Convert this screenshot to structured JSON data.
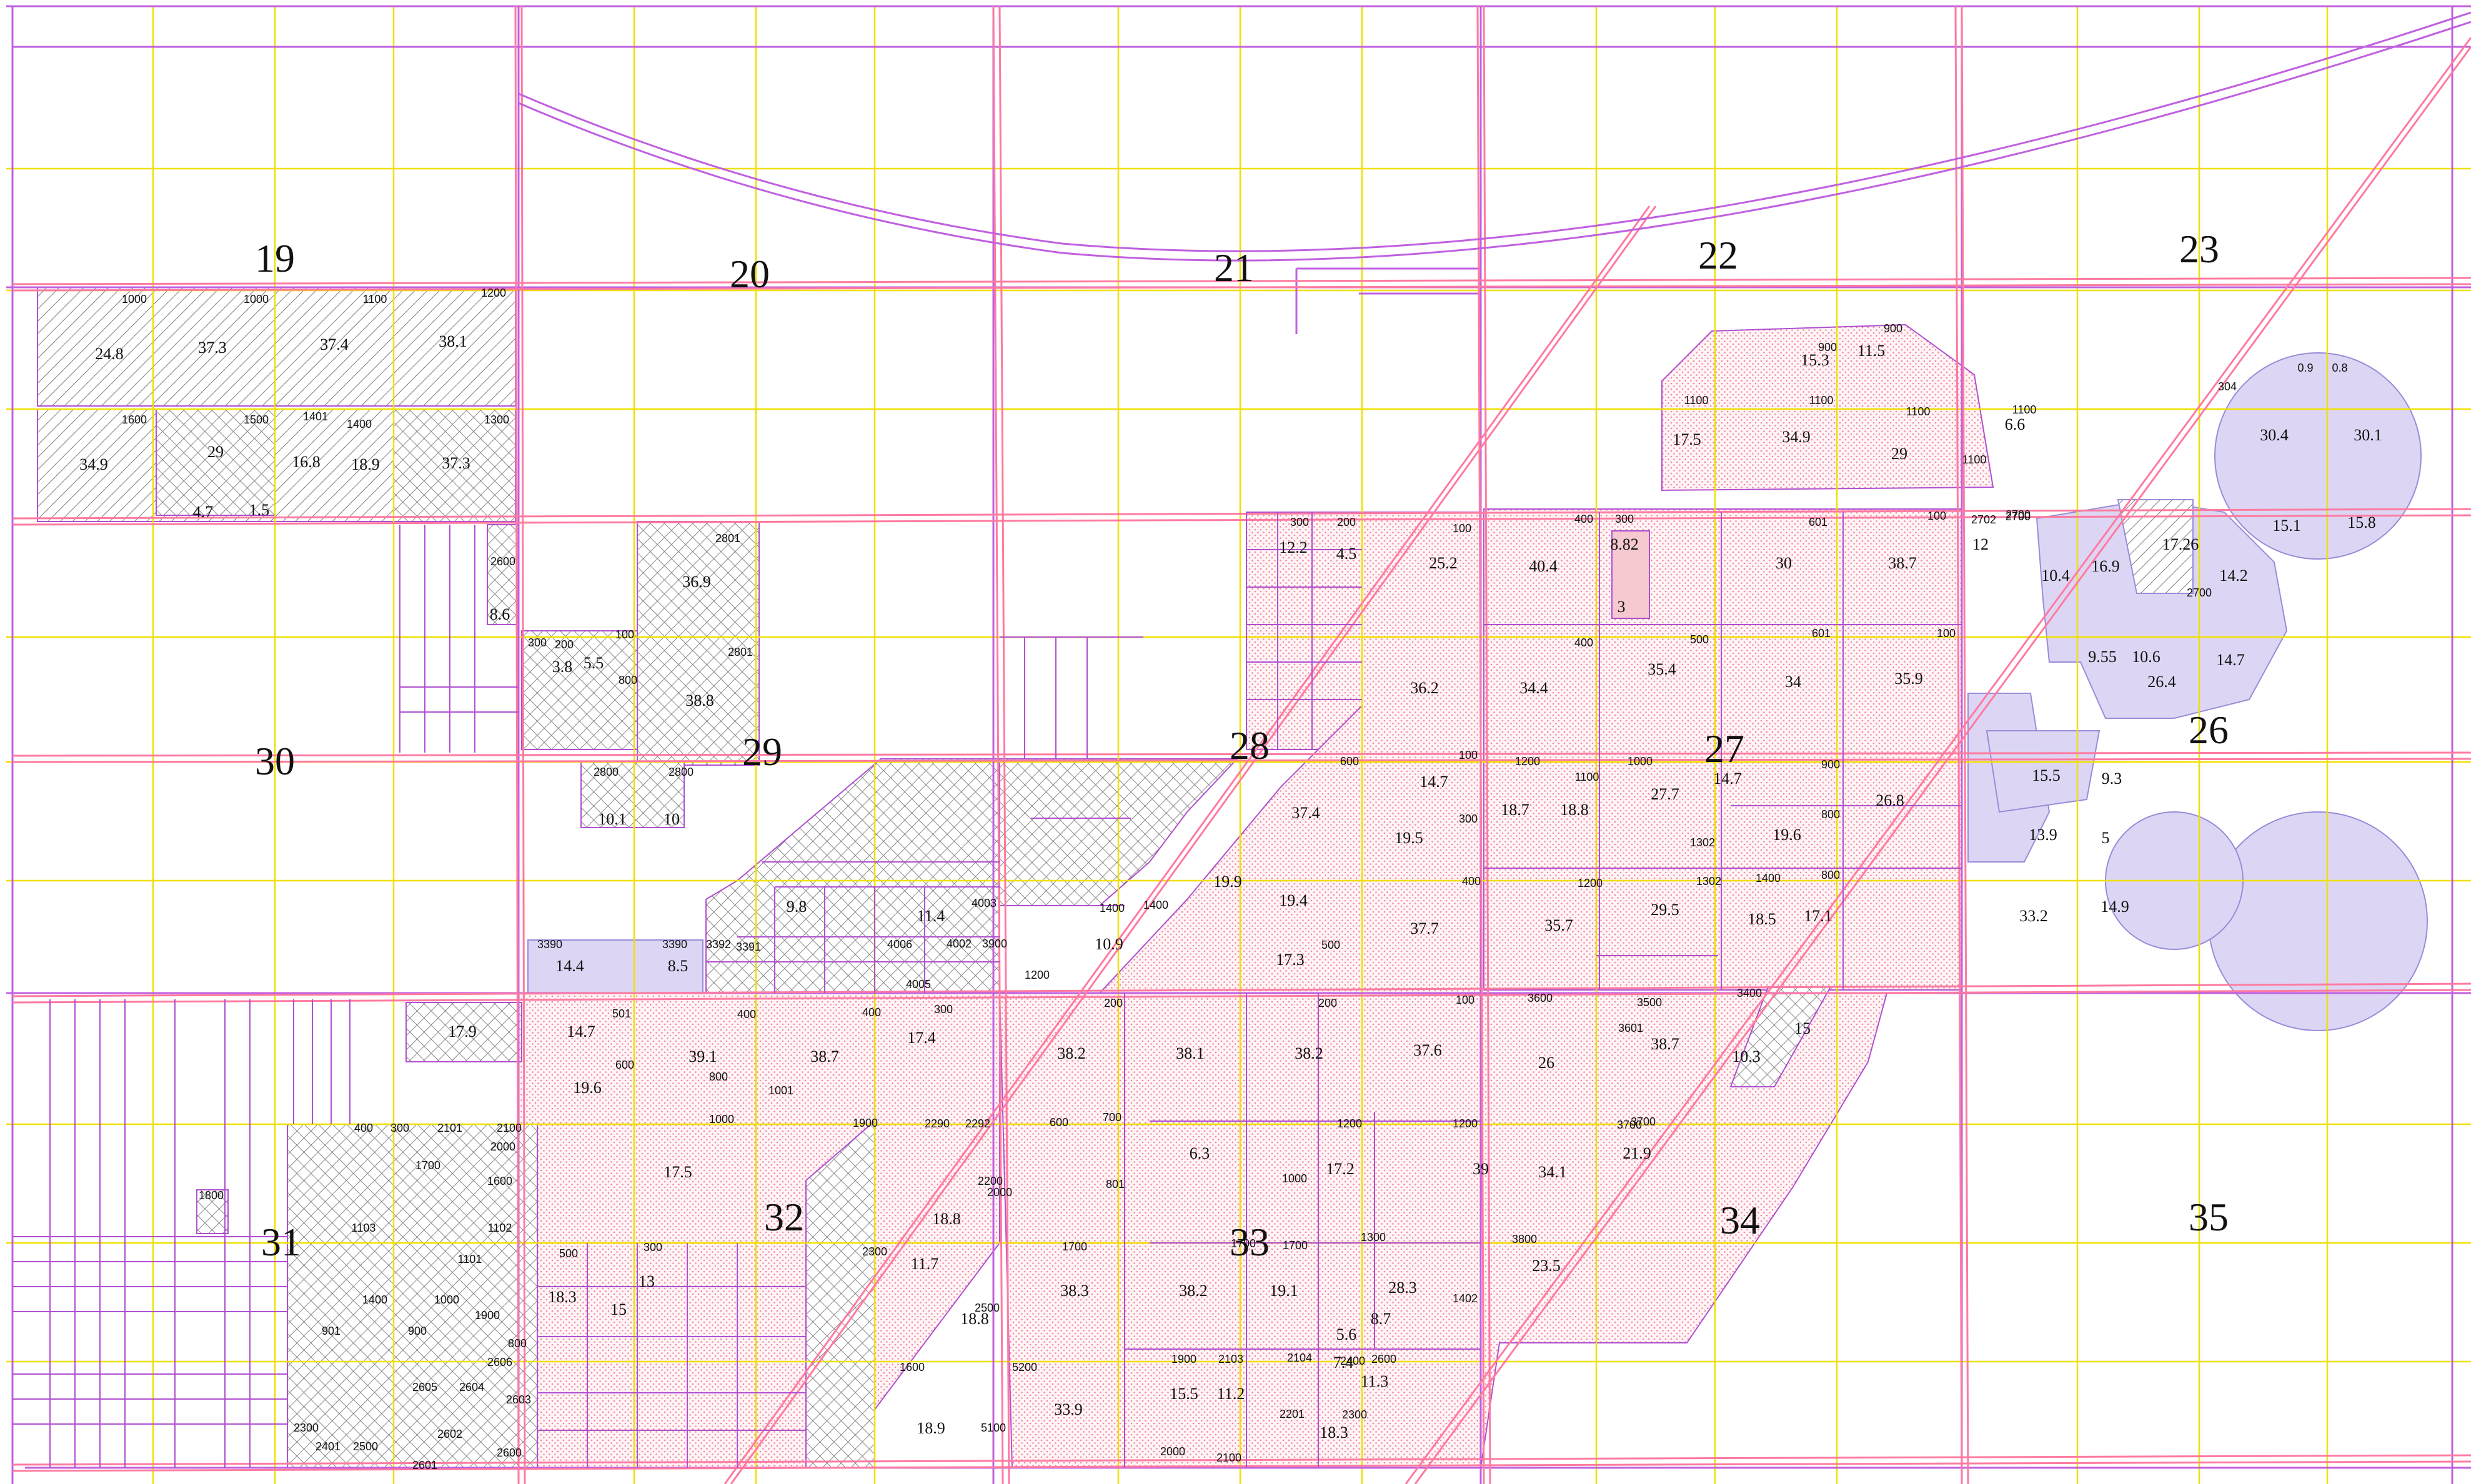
{
  "map": {
    "colors": {
      "road": "#ff7aa0",
      "section_line": "#c060e0",
      "quarter_line": "#f0e000",
      "parcel_line": "#b050d0",
      "dotted_fill": "#ffc0cc",
      "hatch": "#777777",
      "circle_fill": "#dcd6f4",
      "circle_stroke": "#9a8cd8"
    },
    "sections": [
      {
        "label": "19"
      },
      {
        "label": "20"
      },
      {
        "label": "21"
      },
      {
        "label": "22"
      },
      {
        "label": "23"
      },
      {
        "label": "30"
      },
      {
        "label": "29"
      },
      {
        "label": "28"
      },
      {
        "label": "27"
      },
      {
        "label": "26"
      },
      {
        "label": "31"
      },
      {
        "label": "32"
      },
      {
        "label": "33"
      },
      {
        "label": "34"
      },
      {
        "label": "35"
      }
    ],
    "acreage": [
      "24.8",
      "37.3",
      "37.4",
      "38.1",
      "34.9",
      "29",
      "16.8",
      "18.9",
      "37.3",
      "4.7",
      "1.5",
      "36.9",
      "38.8",
      "8.6",
      "5.5",
      "3.8",
      "10.1",
      "10",
      "12.2",
      "4.5",
      "25.2",
      "40.4",
      "8.82",
      "3",
      "30",
      "38.7",
      "12",
      "15.3",
      "11.5",
      "17.5",
      "34.9",
      "29",
      "6.6",
      "30.4",
      "30.1",
      "15.1",
      "15.8",
      "16.9",
      "17.26",
      "10.4",
      "14.2",
      "14.7",
      "26.4",
      "9.55",
      "10.6",
      "36.2",
      "34.4",
      "35.4",
      "34",
      "35.9",
      "37.4",
      "14.7",
      "18.7",
      "18.8",
      "27.7",
      "14.7",
      "26.8",
      "19.6",
      "15.5",
      "9.3",
      "13.9",
      "5",
      "33.2",
      "14.9",
      "19.5",
      "19.9",
      "19.4",
      "37.7",
      "35.7",
      "29.5",
      "18.5",
      "17.1",
      "17.3",
      "10.9",
      "11.4",
      "9.8",
      "14.4",
      "8.5",
      "17.9",
      "14.7",
      "19.6",
      "39.1",
      "38.7",
      "17.4",
      "38.2",
      "38.1",
      "38.2",
      "37.6",
      "26",
      "38.7",
      "10.3",
      "15",
      "17.5",
      "6.3",
      "17.2",
      "39",
      "34.1",
      "21.9",
      "18.8",
      "23.5",
      "38.3",
      "38.2",
      "19.1",
      "28.3",
      "18.3",
      "15",
      "13",
      "11.7",
      "18.8",
      "18.9",
      "33.9",
      "15.5",
      "11.2",
      "18.3",
      "11.3",
      "7.4",
      "8.7",
      "5.6",
      "9.3",
      "9.5"
    ],
    "parcels": [
      "1000",
      "1000",
      "1100",
      "1200",
      "1600",
      "1500",
      "1401",
      "1400",
      "1300",
      "2801",
      "2801",
      "2600",
      "300",
      "200",
      "100",
      "800",
      "2800",
      "2800",
      "300",
      "200",
      "100",
      "400",
      "300",
      "601",
      "100",
      "2702",
      "2700",
      "900",
      "900",
      "1100",
      "1100",
      "1100",
      "1100",
      "1100",
      "304",
      "0.9",
      "0.8",
      "2700",
      "2700",
      "400",
      "500",
      "601",
      "100",
      "1200",
      "1100",
      "1000",
      "900",
      "800",
      "1302",
      "600",
      "100",
      "300",
      "400",
      "1200",
      "1302",
      "1400",
      "800",
      "500",
      "1400",
      "1400",
      "3390",
      "3390",
      "3392",
      "3391",
      "4006",
      "4002",
      "3900",
      "4005",
      "4003",
      "1200",
      "501",
      "400",
      "400",
      "300",
      "200",
      "200",
      "100",
      "3600",
      "3500",
      "3400",
      "3601",
      "600",
      "800",
      "1000",
      "1001",
      "1900",
      "2290",
      "2292",
      "600",
      "700",
      "801",
      "1000",
      "1200",
      "1200",
      "3700",
      "3700",
      "2200",
      "2000",
      "1700",
      "1700",
      "1700",
      "1300",
      "1402",
      "3800",
      "500",
      "300",
      "2300",
      "2500",
      "1600",
      "5200",
      "1900",
      "2103",
      "2104",
      "2400",
      "2600",
      "5100",
      "2201",
      "2300",
      "2000",
      "2100",
      "400",
      "300",
      "2101",
      "2100",
      "2000",
      "1700",
      "1600",
      "1103",
      "1102",
      "1101",
      "1400",
      "1000",
      "1900",
      "901",
      "900",
      "800",
      "2606",
      "2605",
      "2604",
      "2603",
      "2300",
      "2401",
      "2500",
      "2602",
      "2601",
      "2600",
      "1800"
    ]
  }
}
